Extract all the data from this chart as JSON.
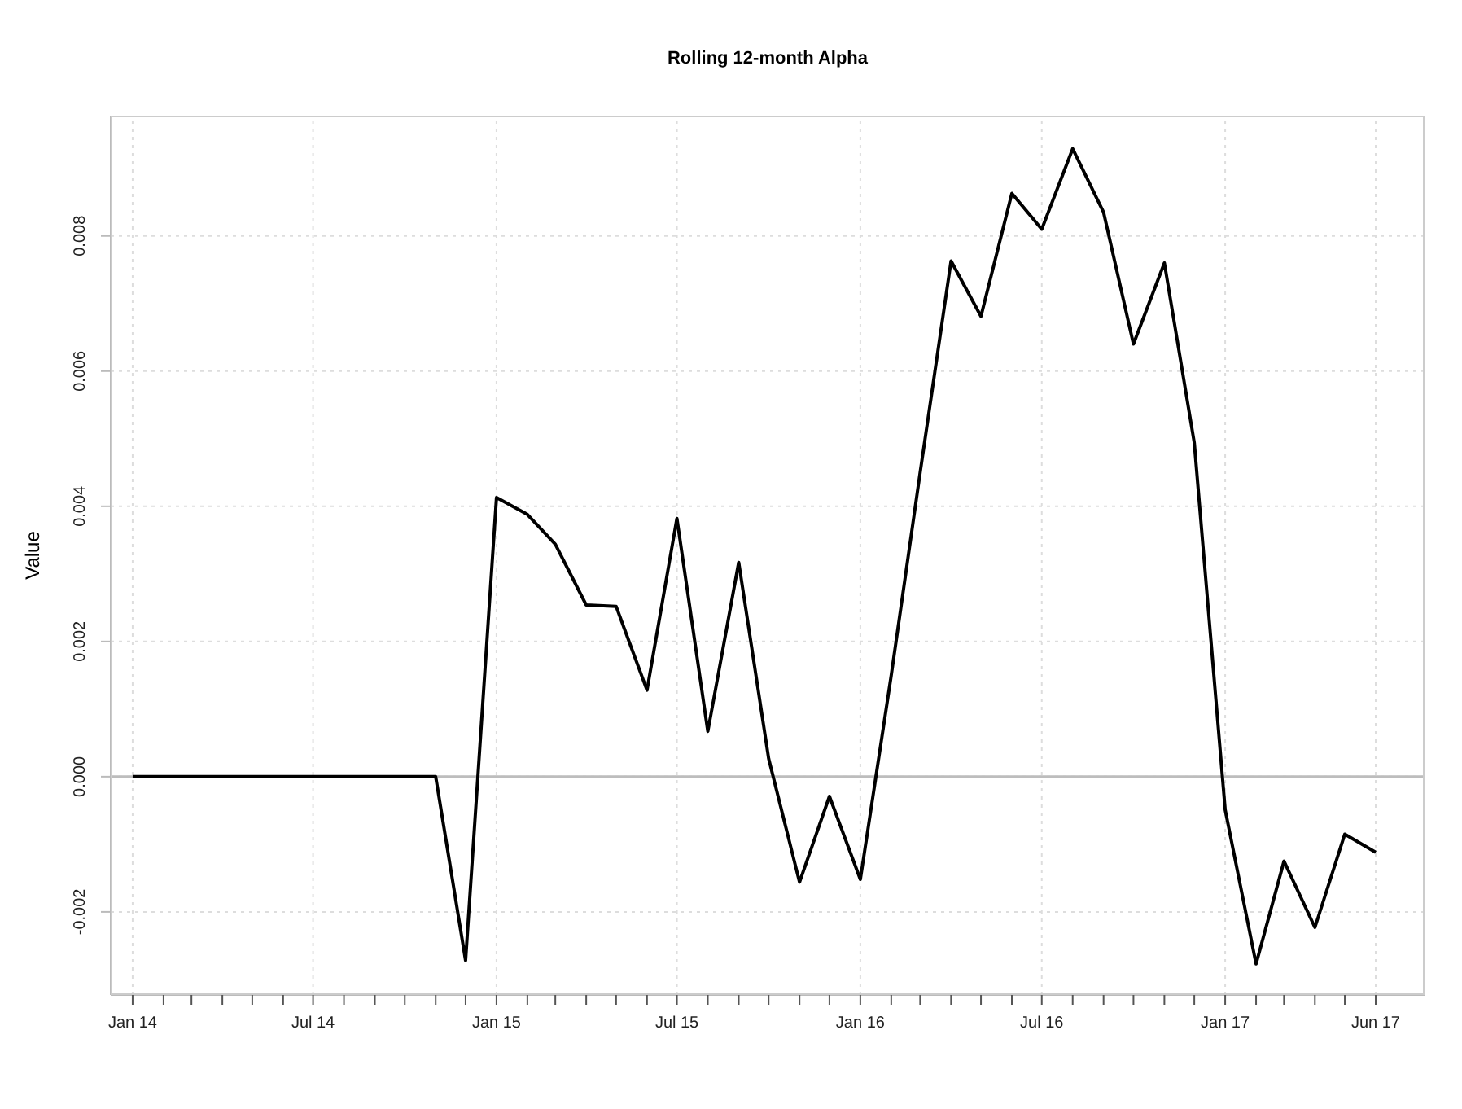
{
  "chart_data": {
    "type": "line",
    "title": "Rolling 12-month Alpha",
    "ylabel": "Value",
    "x": [
      "2014-01",
      "2014-02",
      "2014-03",
      "2014-04",
      "2014-05",
      "2014-06",
      "2014-07",
      "2014-08",
      "2014-09",
      "2014-10",
      "2014-11",
      "2014-12",
      "2015-01",
      "2015-02",
      "2015-03",
      "2015-04",
      "2015-05",
      "2015-06",
      "2015-07",
      "2015-08",
      "2015-09",
      "2015-10",
      "2015-11",
      "2015-12",
      "2016-01",
      "2016-02",
      "2016-03",
      "2016-04",
      "2016-05",
      "2016-06",
      "2016-07",
      "2016-08",
      "2016-09",
      "2016-10",
      "2016-11",
      "2016-12",
      "2017-01",
      "2017-02",
      "2017-03",
      "2017-04",
      "2017-05",
      "2017-06"
    ],
    "series": [
      {
        "color": "#000000",
        "values": [
          0,
          0,
          0,
          0,
          0,
          0,
          0,
          0,
          0,
          0,
          0,
          -0.00272,
          0.00413,
          0.00388,
          0.00344,
          0.00254,
          0.00252,
          0.00128,
          0.00382,
          0.00067,
          0.00317,
          0.00027,
          -0.00156,
          -0.00029,
          -0.00152,
          0.0015,
          0.0045,
          0.00763,
          0.00681,
          0.00863,
          0.0081,
          0.00929,
          0.00835,
          0.0064,
          0.0076,
          0.00494,
          -0.00049,
          -0.00277,
          -0.00125,
          -0.00223,
          -0.00085,
          -0.00112
        ]
      }
    ],
    "xlim": [
      "2013-12-10",
      "2017-07-20"
    ],
    "xticks": [
      {
        "value": "2014-01",
        "label": "Jan 14"
      },
      {
        "value": "2014-02",
        "label": null
      },
      {
        "value": "2014-03",
        "label": null
      },
      {
        "value": "2014-04",
        "label": null
      },
      {
        "value": "2014-05",
        "label": null
      },
      {
        "value": "2014-06",
        "label": null
      },
      {
        "value": "2014-07",
        "label": "Jul 14"
      },
      {
        "value": "2014-08",
        "label": null
      },
      {
        "value": "2014-09",
        "label": null
      },
      {
        "value": "2014-10",
        "label": null
      },
      {
        "value": "2014-11",
        "label": null
      },
      {
        "value": "2014-12",
        "label": null
      },
      {
        "value": "2015-01",
        "label": "Jan 15"
      },
      {
        "value": "2015-02",
        "label": null
      },
      {
        "value": "2015-03",
        "label": null
      },
      {
        "value": "2015-04",
        "label": null
      },
      {
        "value": "2015-05",
        "label": null
      },
      {
        "value": "2015-06",
        "label": null
      },
      {
        "value": "2015-07",
        "label": "Jul 15"
      },
      {
        "value": "2015-08",
        "label": null
      },
      {
        "value": "2015-09",
        "label": null
      },
      {
        "value": "2015-10",
        "label": null
      },
      {
        "value": "2015-11",
        "label": null
      },
      {
        "value": "2015-12",
        "label": null
      },
      {
        "value": "2016-01",
        "label": "Jan 16"
      },
      {
        "value": "2016-02",
        "label": null
      },
      {
        "value": "2016-03",
        "label": null
      },
      {
        "value": "2016-04",
        "label": null
      },
      {
        "value": "2016-05",
        "label": null
      },
      {
        "value": "2016-06",
        "label": null
      },
      {
        "value": "2016-07",
        "label": "Jul 16"
      },
      {
        "value": "2016-08",
        "label": null
      },
      {
        "value": "2016-09",
        "label": null
      },
      {
        "value": "2016-10",
        "label": null
      },
      {
        "value": "2016-11",
        "label": null
      },
      {
        "value": "2016-12",
        "label": null
      },
      {
        "value": "2017-01",
        "label": "Jan 17"
      },
      {
        "value": "2017-02",
        "label": null
      },
      {
        "value": "2017-03",
        "label": null
      },
      {
        "value": "2017-04",
        "label": null
      },
      {
        "value": "2017-05",
        "label": null
      },
      {
        "value": "2017-06",
        "label": "Jun 17"
      }
    ],
    "ylim": [
      -0.00323,
      0.00978
    ],
    "yticks": [
      {
        "value": -0.002,
        "label": "-0.002"
      },
      {
        "value": 0,
        "label": "0.000"
      },
      {
        "value": 0.002,
        "label": "0.002"
      },
      {
        "value": 0.004,
        "label": "0.004"
      },
      {
        "value": 0.006,
        "label": "0.006"
      },
      {
        "value": 0.008,
        "label": "0.008"
      }
    ],
    "ref_lines": [
      {
        "axis": "y",
        "value": 0,
        "color": "#bdbdbd"
      }
    ],
    "grid": true,
    "marker": "none",
    "line_style": "solid"
  }
}
